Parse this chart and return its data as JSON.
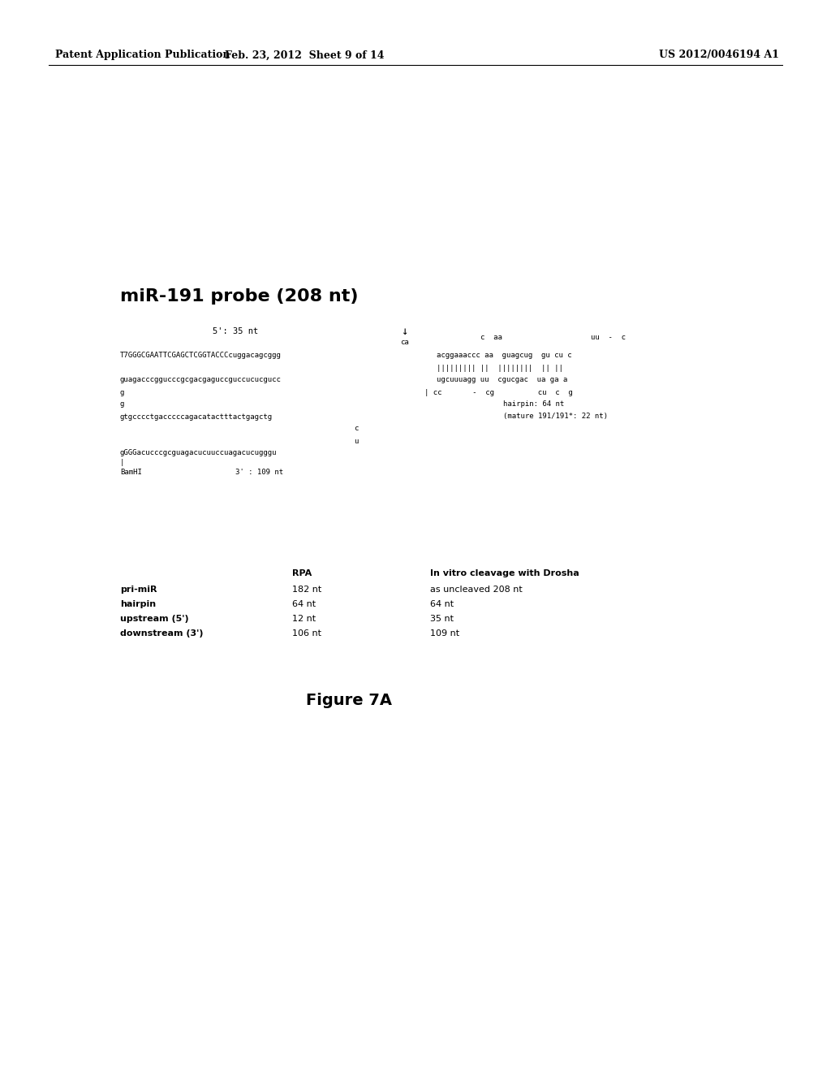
{
  "header_left": "Patent Application Publication",
  "header_mid": "Feb. 23, 2012  Sheet 9 of 14",
  "header_right": "US 2012/0046194 A1",
  "title": "miR-191 probe (208 nt)",
  "figure_label": "Figure 7A",
  "bg_color": "#ffffff",
  "text_color": "#000000",
  "header_fontsize": 9,
  "title_fontsize": 16,
  "diagram_fontsize": 6.5,
  "table_fontsize": 8,
  "figure_fontsize": 14
}
